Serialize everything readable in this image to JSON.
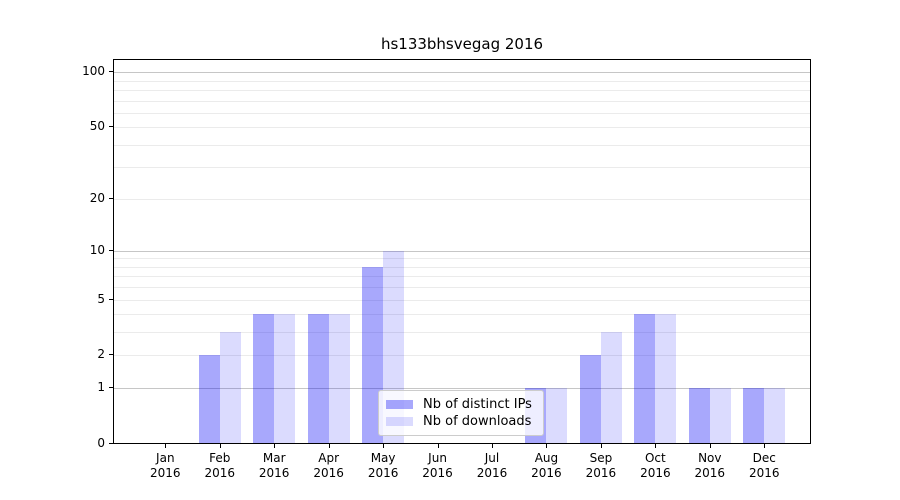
{
  "chart_data": {
    "type": "bar",
    "title": "hs133bhsvegag 2016",
    "categories": [
      "Jan 2016",
      "Feb 2016",
      "Mar 2016",
      "Apr 2016",
      "May 2016",
      "Jun 2016",
      "Jul 2016",
      "Aug 2016",
      "Sep 2016",
      "Oct 2016",
      "Nov 2016",
      "Dec 2016"
    ],
    "series": [
      {
        "name": "Nb of distinct IPs",
        "color": "rgba(0,0,245,0.34)",
        "values": [
          0,
          2,
          4,
          4,
          8,
          0,
          0,
          1,
          2,
          4,
          1,
          1
        ]
      },
      {
        "name": "Nb of downloads",
        "color": "rgba(0,0,245,0.14)",
        "values": [
          0,
          3,
          4,
          4,
          10,
          0,
          0,
          1,
          3,
          4,
          1,
          1
        ]
      }
    ],
    "xlabel": "",
    "ylabel": "",
    "yscale": "log1p",
    "ylim": [
      0,
      115
    ],
    "yticks": [
      0,
      1,
      2,
      5,
      10,
      20,
      50,
      100
    ],
    "major_gridline_values": [
      1,
      10,
      100
    ],
    "minor_gridline_values": [
      2,
      3,
      4,
      5,
      6,
      7,
      8,
      9,
      20,
      30,
      40,
      50,
      60,
      70,
      80,
      90
    ],
    "grid": true,
    "legend_position": "lower center",
    "colors": {
      "major_grid": "#c6c6c6",
      "minor_grid": "#ebebeb",
      "axis": "#000000",
      "background": "#ffffff"
    }
  }
}
